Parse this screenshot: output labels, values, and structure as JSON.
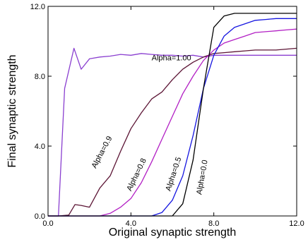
{
  "chart_data": {
    "type": "line",
    "xlabel": "Original synaptic strength",
    "ylabel": "Final synaptic strength",
    "xlim": [
      0,
      12
    ],
    "ylim": [
      0,
      12
    ],
    "xticks": [
      0.0,
      4.0,
      8.0,
      12.0
    ],
    "yticks": [
      0.0,
      4.0,
      8.0,
      12.0
    ],
    "xtick_labels": [
      "0.0",
      "4.0",
      "8.0",
      "12.0"
    ],
    "ytick_labels": [
      "0.0",
      "4.0",
      "8.0",
      "12.0"
    ],
    "grid": false,
    "legend": "none",
    "series": [
      {
        "name": "Alpha=1.00",
        "color": "#8a3fd0",
        "x": [
          0.0,
          0.5,
          0.8,
          1.25,
          1.6,
          2.0,
          2.5,
          3.0,
          3.5,
          4.0,
          4.5,
          5.0,
          5.5,
          6.0,
          6.5,
          7.0,
          7.5,
          8.0,
          8.5,
          9.0,
          9.5,
          10.0,
          10.5,
          11.0,
          11.5,
          12.0
        ],
        "y": [
          0.0,
          0.0,
          7.3,
          9.6,
          8.4,
          9.0,
          9.1,
          9.15,
          9.25,
          9.2,
          9.3,
          9.25,
          9.2,
          9.2,
          9.15,
          9.2,
          9.1,
          9.2,
          9.2,
          9.2,
          9.2,
          9.2,
          9.2,
          9.2,
          9.2,
          9.2
        ]
      },
      {
        "name": "Alpha=0.9",
        "color": "#5c1535",
        "x": [
          0.0,
          0.5,
          1.0,
          1.3,
          1.6,
          2.0,
          2.5,
          3.0,
          3.5,
          4.0,
          4.5,
          5.0,
          5.5,
          6.0,
          6.5,
          7.0,
          7.5,
          8.0,
          8.5,
          9.0,
          9.5,
          10.0,
          10.5,
          11.0,
          11.5,
          12.0
        ],
        "y": [
          0.0,
          0.0,
          0.05,
          0.65,
          0.6,
          0.5,
          1.6,
          2.3,
          3.7,
          5.0,
          5.9,
          6.7,
          7.1,
          7.8,
          8.4,
          8.8,
          9.1,
          9.3,
          9.35,
          9.4,
          9.45,
          9.5,
          9.5,
          9.5,
          9.55,
          9.6
        ]
      },
      {
        "name": "Alpha=0.8",
        "color": "#b21fc4",
        "x": [
          0.0,
          2.5,
          3.0,
          3.5,
          4.0,
          4.5,
          5.0,
          5.5,
          6.0,
          6.5,
          7.0,
          7.5,
          8.0,
          8.5,
          9.0,
          9.5,
          10.0,
          10.5,
          11.0,
          11.5,
          12.0
        ],
        "y": [
          0.0,
          0.0,
          0.15,
          0.5,
          1.0,
          1.9,
          3.1,
          4.4,
          5.7,
          7.0,
          8.0,
          8.9,
          9.5,
          9.9,
          10.1,
          10.3,
          10.5,
          10.55,
          10.6,
          10.65,
          10.7
        ]
      },
      {
        "name": "Alpha=0.5",
        "color": "#1515e0",
        "x": [
          0.0,
          5.0,
          5.5,
          6.0,
          6.5,
          7.0,
          7.5,
          8.0,
          8.5,
          9.0,
          9.5,
          10.0,
          10.5,
          11.0,
          11.5,
          12.0
        ],
        "y": [
          0.0,
          0.0,
          0.2,
          0.9,
          2.3,
          4.6,
          7.3,
          9.2,
          10.3,
          10.8,
          11.0,
          11.2,
          11.25,
          11.3,
          11.3,
          11.3
        ]
      },
      {
        "name": "Alpha=0.0",
        "color": "#000000",
        "x": [
          0.0,
          6.0,
          6.5,
          7.0,
          7.5,
          8.0,
          8.5,
          9.0,
          9.5,
          10.0,
          10.5,
          11.0,
          11.5,
          12.0
        ],
        "y": [
          0.0,
          0.0,
          0.7,
          3.2,
          7.3,
          10.8,
          11.45,
          11.6,
          11.6,
          11.6,
          11.6,
          11.6,
          11.6,
          11.6
        ]
      }
    ],
    "annotations": [
      {
        "text": "Alpha=1.00",
        "x": 5.0,
        "y": 8.9,
        "rotation": 0
      },
      {
        "text": "Alpha=0.9",
        "x": 2.3,
        "y": 2.7,
        "rotation": -62
      },
      {
        "text": "Alpha=0.8",
        "x": 4.0,
        "y": 1.4,
        "rotation": -64
      },
      {
        "text": "Alpha=0.5",
        "x": 5.9,
        "y": 1.4,
        "rotation": -72
      },
      {
        "text": "Alpha=0.0",
        "x": 7.4,
        "y": 1.2,
        "rotation": -80
      }
    ]
  }
}
